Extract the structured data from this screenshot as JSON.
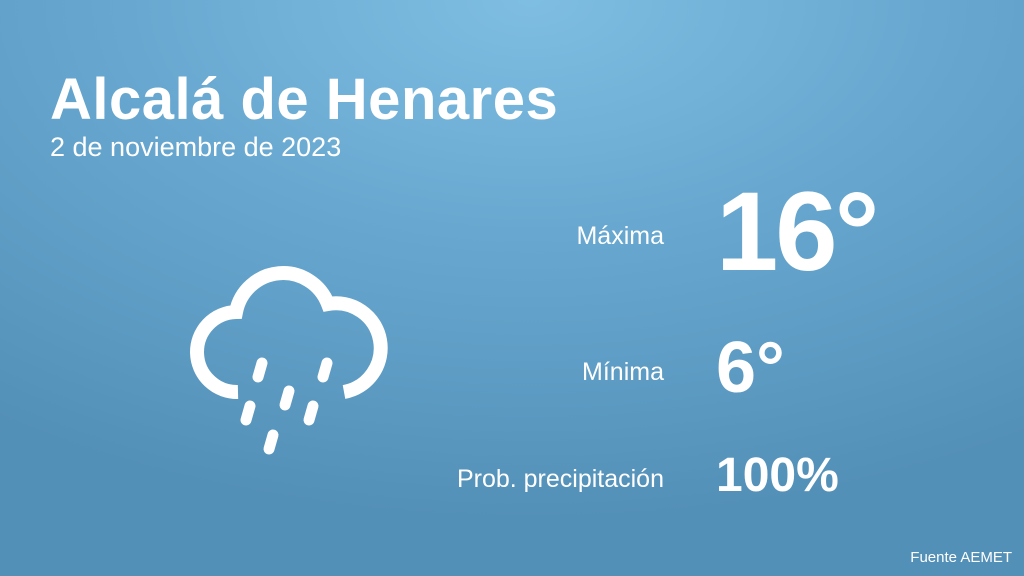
{
  "header": {
    "city": "Alcalá de Henares",
    "date": "2 de noviembre de 2023"
  },
  "forecast": {
    "icon": "rain-cloud-icon",
    "max_label": "Máxima",
    "max_value": "16°",
    "min_label": "Mínima",
    "min_value": "6°",
    "precip_label": "Prob. precipitación",
    "precip_value": "100%"
  },
  "footer": {
    "source": "Fuente AEMET"
  }
}
